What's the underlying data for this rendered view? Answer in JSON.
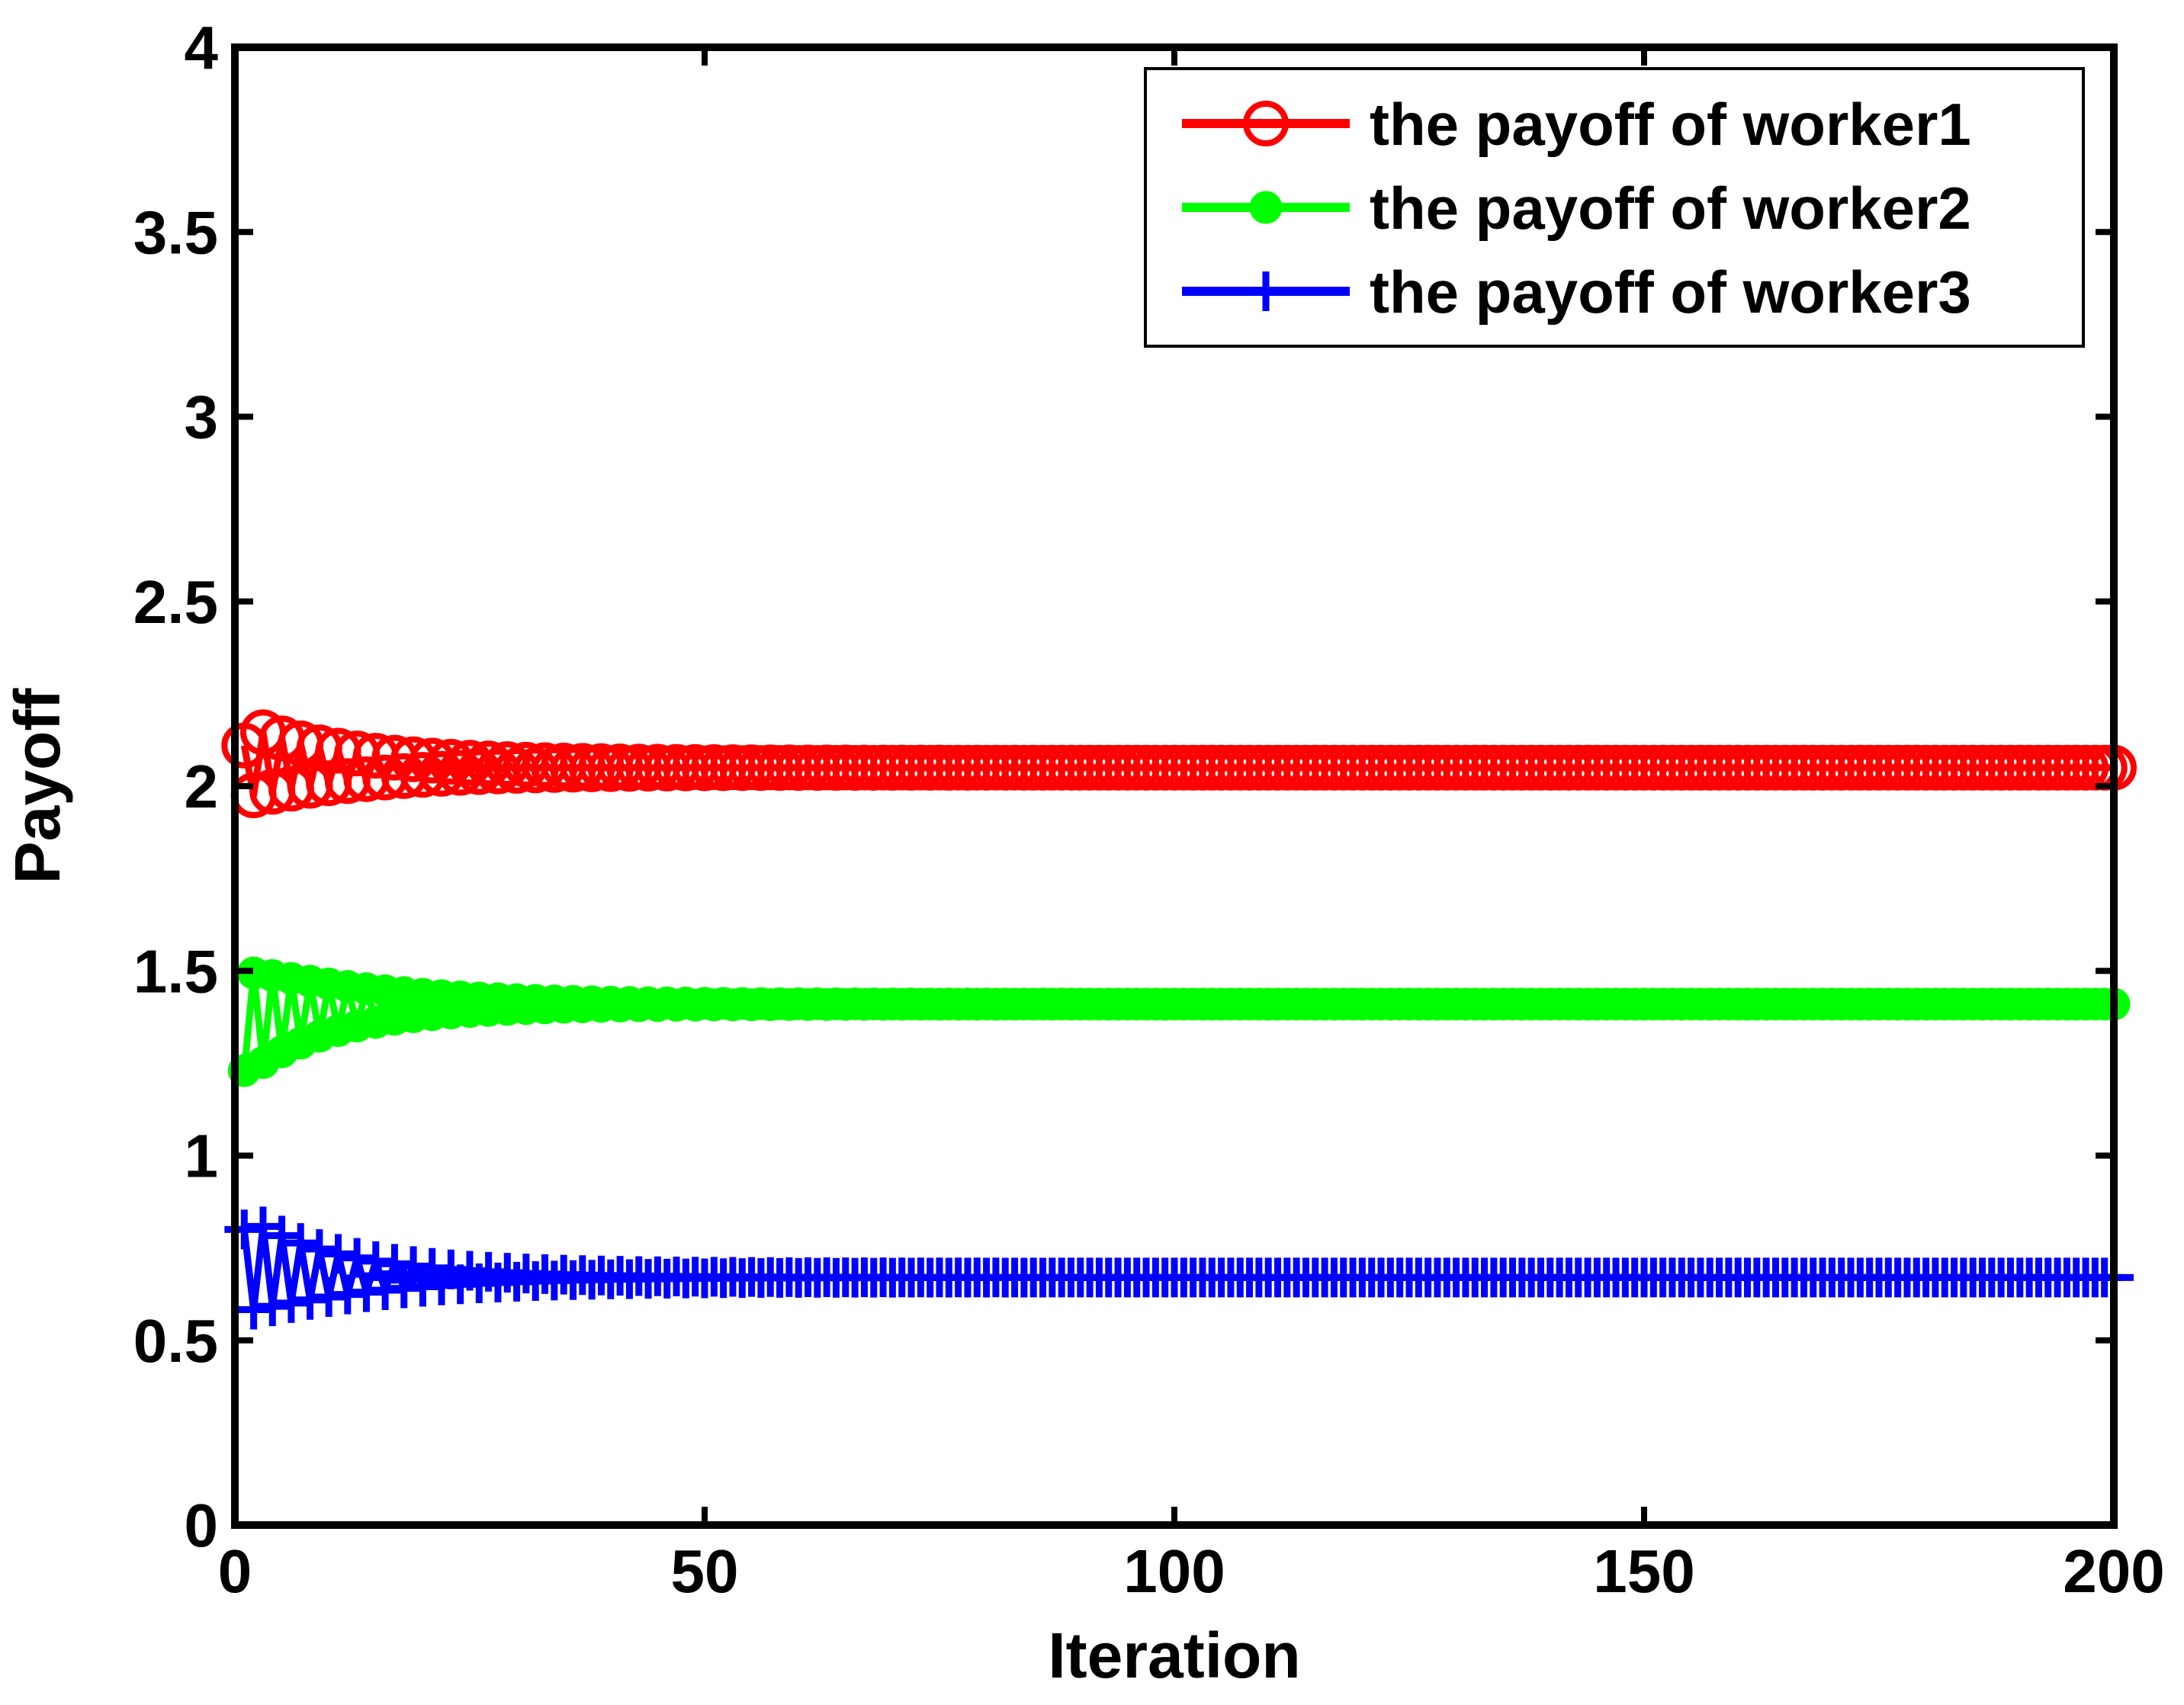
{
  "chart_data": {
    "type": "line",
    "title": "",
    "xlabel": "Iteration",
    "ylabel": "Payoff",
    "xlim": [
      0,
      200
    ],
    "ylim": [
      0,
      4
    ],
    "xticks": [
      0,
      50,
      100,
      150,
      200
    ],
    "yticks": [
      0,
      0.5,
      1,
      1.5,
      2,
      2.5,
      3,
      3.5,
      4
    ],
    "xtick_labels": [
      "0",
      "50",
      "100",
      "150",
      "200"
    ],
    "ytick_labels": [
      "0",
      "0.5",
      "1",
      "1.5",
      "2",
      "2.5",
      "3",
      "3.5",
      "4"
    ],
    "grid": false,
    "legend_position": "top-right",
    "series": [
      {
        "name": "the payoff of worker1",
        "color": "#ff0000",
        "marker": "circle-open",
        "start": 2.11,
        "final": 2.05,
        "oscillation_amplitude": 0.09,
        "decay_iterations": 12
      },
      {
        "name": "the payoff of worker2",
        "color": "#00ff00",
        "marker": "circle-filled",
        "start": 1.23,
        "final": 1.41,
        "oscillation_amplitude": 0.13,
        "decay_iterations": 12
      },
      {
        "name": "the payoff of worker3",
        "color": "#0000ff",
        "marker": "plus",
        "start": 0.8,
        "final": 0.67,
        "oscillation_amplitude": 0.12,
        "decay_iterations": 12
      }
    ]
  }
}
